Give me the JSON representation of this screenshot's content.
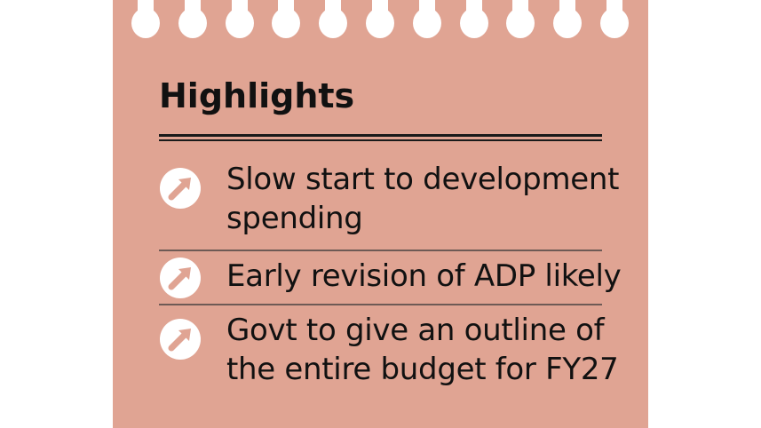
{
  "colors": {
    "card_background": "#e0a493",
    "hole": "#ffffff",
    "text": "#111111",
    "bullet_circle": "#ffffff",
    "bullet_arrow": "#e0a493"
  },
  "card": {
    "title": "Highlights",
    "bullet_icon": "arrow-up-right-circle-icon",
    "items": [
      {
        "line1": "Slow start to development",
        "line2": "spending"
      },
      {
        "line1": "Early revision of ADP likely",
        "line2": ""
      },
      {
        "line1": "Govt to give an outline of",
        "line2": "the entire budget for FY27"
      }
    ]
  }
}
